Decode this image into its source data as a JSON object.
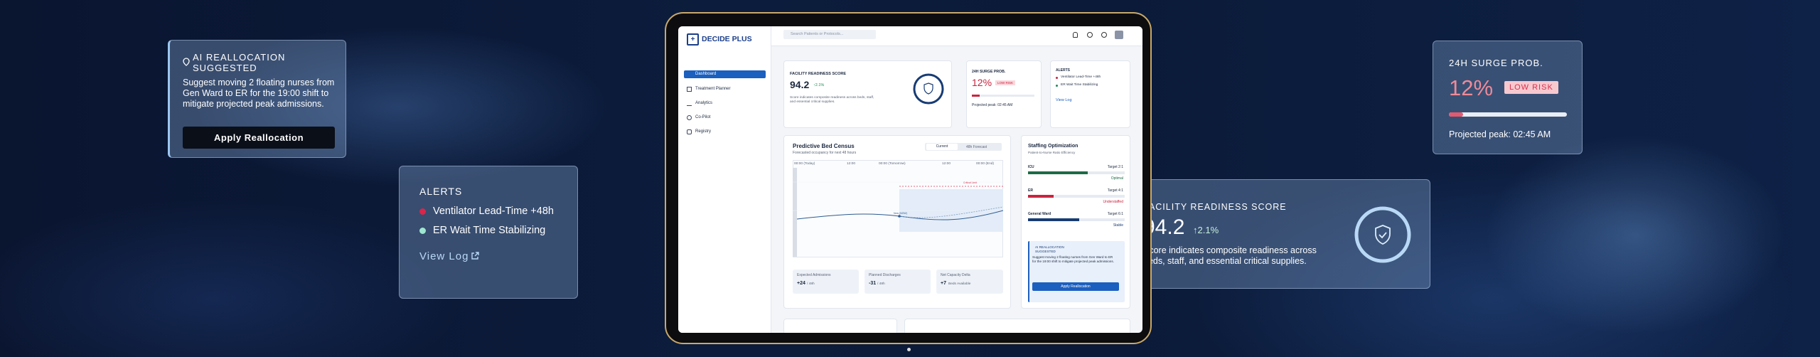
{
  "floating": {
    "ai_card": {
      "title": "AI REALLOCATION SUGGESTED",
      "text": "Suggest moving 2 floating nurses from Gen Ward to ER for the 19:00 shift to mitigate projected peak admissions.",
      "button": "Apply Reallocation"
    },
    "alerts_card": {
      "title": "ALERTS",
      "items": [
        "Ventilator Lead-Time +48h",
        "ER Wait Time Stabilizing"
      ],
      "link": "View Log"
    },
    "surge_card": {
      "title": "24H SURGE PROB.",
      "value": "12%",
      "badge": "LOW RISK",
      "note": "Projected peak: 02:45 AM"
    },
    "readiness_card": {
      "title": "FACILITY READINESS SCORE",
      "value": "94.2",
      "change": "↑2.1%",
      "text": "Score indicates composite readiness across beds, staff, and essential critical supplies."
    }
  },
  "app": {
    "logo": "DECIDE PLUS",
    "search": "Search Patients or Protocols...",
    "nav": [
      "Dashboard",
      "Treatment Planner",
      "Analytics",
      "Co-Pilot",
      "Registry"
    ],
    "readiness": {
      "title": "FACILITY READINESS SCORE",
      "value": "94.2",
      "change": "↑2.1%",
      "text": "Score indicates composite readiness across beds, staff, and essential critical supplies."
    },
    "surge": {
      "title": "24H SURGE PROB.",
      "value": "12%",
      "badge": "LOW RISK",
      "note": "Projected peak: 02:45 AM"
    },
    "alerts": {
      "title": "ALERTS",
      "items": [
        "Ventilator Lead-Time +48h",
        "ER Wait Time Stabilizing"
      ],
      "link": "View Log"
    },
    "census": {
      "title": "Predictive Bed Census",
      "subtitle": "Forecasted occupancy for next 48 hours",
      "tabs": [
        "Current",
        "48h Forecast"
      ],
      "time_labels": [
        "00:00 (Today)",
        "12:00",
        "00:00 (Tomorrow)",
        "12:00",
        "00:00 (End)"
      ],
      "limit_label": "Critical Limit",
      "now_label": "Now (NOW)",
      "stats": [
        {
          "label": "Expected Admissions",
          "value": "+24",
          "unit": "/ 48h"
        },
        {
          "label": "Planned Discharges",
          "value": "-31",
          "unit": "/ 48h"
        },
        {
          "label": "Net Capacity Delta",
          "value": "+7",
          "unit": "Beds Available"
        }
      ]
    },
    "staffing": {
      "title": "Staffing Optimization",
      "subtitle": "Patient-to-Nurse Ratio Efficiency",
      "rows": [
        {
          "unit": "ICU",
          "target": "Target 2:1",
          "status": "Optimal"
        },
        {
          "unit": "ER",
          "target": "Target 4:1",
          "status": "Understaffed"
        },
        {
          "unit": "General Ward",
          "target": "Target 6:1",
          "status": "Stable"
        }
      ],
      "ai": {
        "title": "AI REALLOCATION SUGGESTED",
        "text": "Suggest moving 2 floating nurses from Gen Ward to ER for the 19:00 shift to mitigate projected peak admissions.",
        "button": "Apply Reallocation"
      }
    }
  }
}
